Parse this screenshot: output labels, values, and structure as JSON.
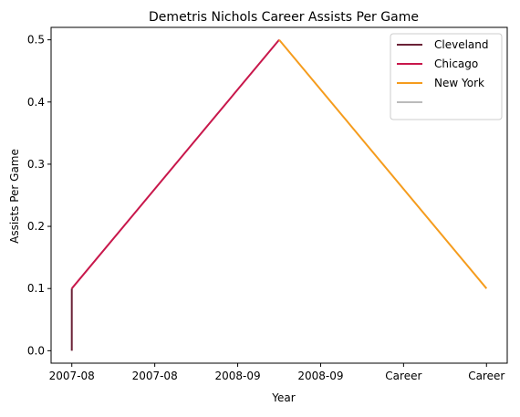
{
  "chart_data": {
    "type": "line",
    "title": "Demetris Nichols Career Assists Per Game",
    "xlabel": "Year",
    "ylabel": "Assists Per Game",
    "x_tick_labels": [
      "2007-08",
      "2007-08",
      "2008-09",
      "2008-09",
      "Career",
      "Career"
    ],
    "y_ticks": [
      0.0,
      0.1,
      0.2,
      0.3,
      0.4,
      0.5
    ],
    "y_tick_labels": [
      "0.0",
      "0.1",
      "0.2",
      "0.3",
      "0.4",
      "0.5"
    ],
    "ylim": [
      -0.02,
      0.52
    ],
    "grid": false,
    "legend_position": "top-right",
    "series": [
      {
        "name": "Cleveland",
        "color": "#6b2237",
        "points": [
          {
            "x": 0,
            "y": 0.0
          },
          {
            "x": 0,
            "y": 0.1
          }
        ]
      },
      {
        "name": "Chicago",
        "color": "#c8174b",
        "points": [
          {
            "x": 0,
            "y": 0.1
          },
          {
            "x": 2.5,
            "y": 0.5
          }
        ]
      },
      {
        "name": "New York",
        "color": "#f59c1d",
        "points": [
          {
            "x": 2.5,
            "y": 0.5
          },
          {
            "x": 5,
            "y": 0.1
          }
        ]
      },
      {
        "name": "",
        "color": "#bbbbbb",
        "points": []
      }
    ]
  }
}
